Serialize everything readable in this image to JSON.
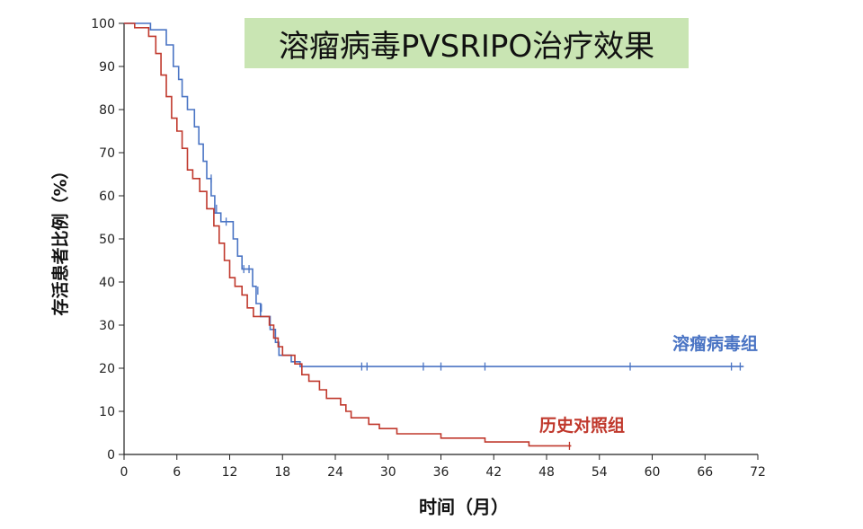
{
  "colors": {
    "title_bg": "#c9e5b3",
    "virus": "#4a74c4",
    "historical": "#c0382c",
    "axis": "#222222"
  },
  "chart_data": {
    "type": "line",
    "title": "溶瘤病毒PVSRIPO治疗效果",
    "xlabel": "时间（月）",
    "ylabel": "存活患者比例（%）",
    "xlim": [
      0,
      72
    ],
    "ylim": [
      0,
      100
    ],
    "xticks": [
      0,
      6,
      12,
      18,
      24,
      30,
      36,
      42,
      48,
      54,
      60,
      66,
      72
    ],
    "yticks": [
      0,
      10,
      20,
      30,
      40,
      50,
      60,
      70,
      80,
      90,
      100
    ],
    "grid": false,
    "legend": "inline labels",
    "series": [
      {
        "name": "溶瘤病毒组",
        "color": "#4a74c4",
        "steps": [
          [
            0,
            100
          ],
          [
            3,
            100
          ],
          [
            3,
            98.5
          ],
          [
            4.8,
            98.5
          ],
          [
            4.8,
            95
          ],
          [
            5.6,
            95
          ],
          [
            5.6,
            90
          ],
          [
            6.2,
            90
          ],
          [
            6.2,
            87
          ],
          [
            6.6,
            87
          ],
          [
            6.6,
            83
          ],
          [
            7.2,
            83
          ],
          [
            7.2,
            80
          ],
          [
            8,
            80
          ],
          [
            8,
            76
          ],
          [
            8.5,
            76
          ],
          [
            8.5,
            72
          ],
          [
            9,
            72
          ],
          [
            9,
            68
          ],
          [
            9.4,
            68
          ],
          [
            9.4,
            64
          ],
          [
            9.9,
            64
          ],
          [
            9.9,
            60
          ],
          [
            10.3,
            60
          ],
          [
            10.3,
            56
          ],
          [
            11,
            56
          ],
          [
            11,
            54
          ],
          [
            12.4,
            54
          ],
          [
            12.4,
            50
          ],
          [
            12.9,
            50
          ],
          [
            12.9,
            46
          ],
          [
            13.4,
            46
          ],
          [
            13.4,
            43
          ],
          [
            14.6,
            43
          ],
          [
            14.6,
            39
          ],
          [
            15,
            39
          ],
          [
            15,
            35
          ],
          [
            15.5,
            35
          ],
          [
            15.5,
            32
          ],
          [
            16.6,
            32
          ],
          [
            16.6,
            29
          ],
          [
            17.2,
            29
          ],
          [
            17.2,
            26
          ],
          [
            17.6,
            26
          ],
          [
            17.6,
            23
          ],
          [
            19,
            23
          ],
          [
            19,
            21.5
          ],
          [
            20,
            21.5
          ],
          [
            20,
            20.4
          ],
          [
            70.4,
            20.4
          ]
        ],
        "censored": [
          [
            9.9,
            64
          ],
          [
            10.5,
            57
          ],
          [
            11.6,
            54
          ],
          [
            13.6,
            43
          ],
          [
            14.2,
            43
          ],
          [
            15.2,
            38
          ],
          [
            15.6,
            34
          ],
          [
            27,
            20.4
          ],
          [
            27.6,
            20.4
          ],
          [
            34,
            20.4
          ],
          [
            36,
            20.4
          ],
          [
            41,
            20.4
          ],
          [
            57.5,
            20.4
          ],
          [
            69,
            20.4
          ],
          [
            70,
            20.4
          ]
        ]
      },
      {
        "name": "历史对照组",
        "color": "#c0382c",
        "steps": [
          [
            0,
            100
          ],
          [
            1.2,
            100
          ],
          [
            1.2,
            99
          ],
          [
            2.8,
            99
          ],
          [
            2.8,
            97
          ],
          [
            3.6,
            97
          ],
          [
            3.6,
            93
          ],
          [
            4.2,
            93
          ],
          [
            4.2,
            88
          ],
          [
            4.8,
            88
          ],
          [
            4.8,
            83
          ],
          [
            5.4,
            83
          ],
          [
            5.4,
            78
          ],
          [
            6,
            78
          ],
          [
            6,
            75
          ],
          [
            6.6,
            75
          ],
          [
            6.6,
            71
          ],
          [
            7.2,
            71
          ],
          [
            7.2,
            66
          ],
          [
            7.8,
            66
          ],
          [
            7.8,
            64
          ],
          [
            8.6,
            64
          ],
          [
            8.6,
            61
          ],
          [
            9.4,
            61
          ],
          [
            9.4,
            57
          ],
          [
            10.2,
            57
          ],
          [
            10.2,
            53
          ],
          [
            10.8,
            53
          ],
          [
            10.8,
            49
          ],
          [
            11.4,
            49
          ],
          [
            11.4,
            45
          ],
          [
            12,
            45
          ],
          [
            12,
            41
          ],
          [
            12.6,
            41
          ],
          [
            12.6,
            39
          ],
          [
            13.4,
            39
          ],
          [
            13.4,
            37
          ],
          [
            14,
            37
          ],
          [
            14,
            34
          ],
          [
            14.7,
            34
          ],
          [
            14.7,
            32
          ],
          [
            16.5,
            32
          ],
          [
            16.5,
            30
          ],
          [
            17,
            30
          ],
          [
            17,
            27
          ],
          [
            17.5,
            27
          ],
          [
            17.5,
            25
          ],
          [
            18,
            25
          ],
          [
            18,
            23
          ],
          [
            19.4,
            23
          ],
          [
            19.4,
            21
          ],
          [
            20.2,
            21
          ],
          [
            20.2,
            18.5
          ],
          [
            21,
            18.5
          ],
          [
            21,
            17
          ],
          [
            22.2,
            17
          ],
          [
            22.2,
            15
          ],
          [
            23,
            15
          ],
          [
            23,
            13
          ],
          [
            24.6,
            13
          ],
          [
            24.6,
            11.5
          ],
          [
            25.2,
            11.5
          ],
          [
            25.2,
            10
          ],
          [
            25.8,
            10
          ],
          [
            25.8,
            8.5
          ],
          [
            27.8,
            8.5
          ],
          [
            27.8,
            7
          ],
          [
            29,
            7
          ],
          [
            29,
            6
          ],
          [
            31,
            6
          ],
          [
            31,
            4.8
          ],
          [
            36,
            4.8
          ],
          [
            36,
            3.8
          ],
          [
            41,
            3.8
          ],
          [
            41,
            2.9
          ],
          [
            46,
            2.9
          ],
          [
            46,
            2
          ],
          [
            50.8,
            2
          ]
        ],
        "censored": [
          [
            50.6,
            2
          ]
        ]
      }
    ]
  }
}
